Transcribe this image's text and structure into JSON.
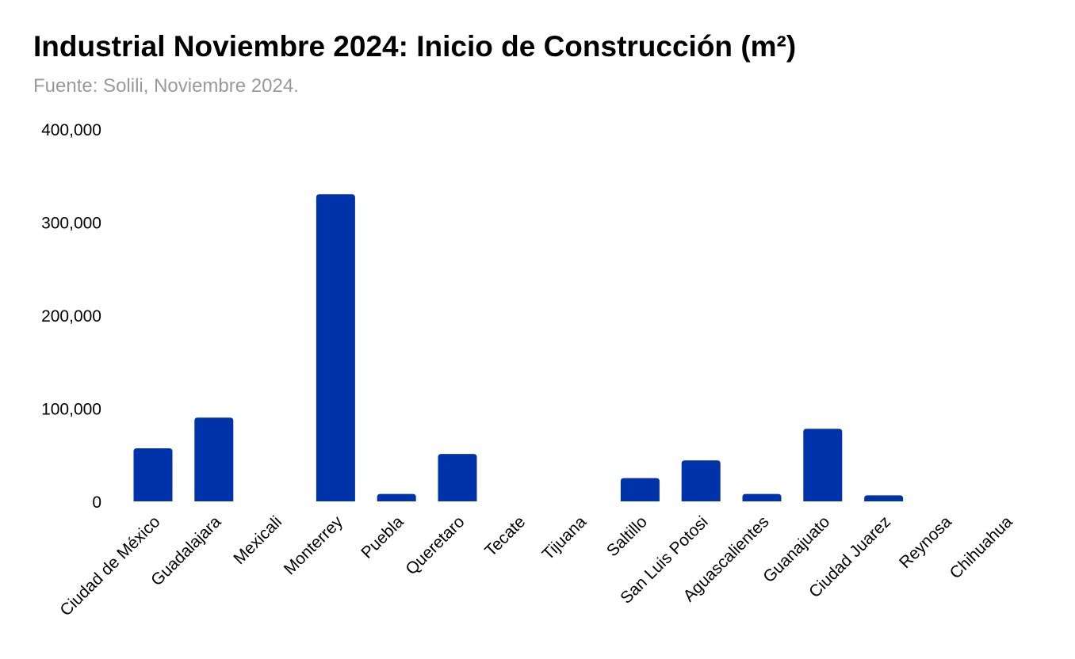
{
  "title": "Industrial Noviembre 2024: Inicio de Construcción (m²)",
  "subtitle": "Fuente: Solili, Noviembre 2024.",
  "colors": {
    "bar": "#0033AA",
    "title": "#000000",
    "subtitle": "#9A9A9A"
  },
  "chart_data": {
    "type": "bar",
    "title": "Industrial Noviembre 2024: Inicio de Construcción (m²)",
    "subtitle": "Fuente: Solili, Noviembre 2024.",
    "xlabel": "",
    "ylabel": "",
    "ylim": [
      0,
      400000
    ],
    "yticks": [
      0,
      100000,
      200000,
      300000,
      400000
    ],
    "ytick_labels": [
      "0",
      "100,000",
      "200,000",
      "300,000",
      "400,000"
    ],
    "grid": false,
    "legend": "none",
    "categories": [
      "Ciudad de México",
      "Guadalajara",
      "Mexicali",
      "Monterrey",
      "Puebla",
      "Queretaro",
      "Tecate",
      "Tijuana",
      "Saltillo",
      "San Luis Potosi",
      "Aguascalientes",
      "Guanajuato",
      "Ciudad Juarez",
      "Reynosa",
      "Chihuahua"
    ],
    "values": [
      57000,
      90000,
      0,
      330000,
      8000,
      51000,
      0,
      0,
      25000,
      44000,
      8000,
      78000,
      6500,
      0,
      0
    ]
  }
}
